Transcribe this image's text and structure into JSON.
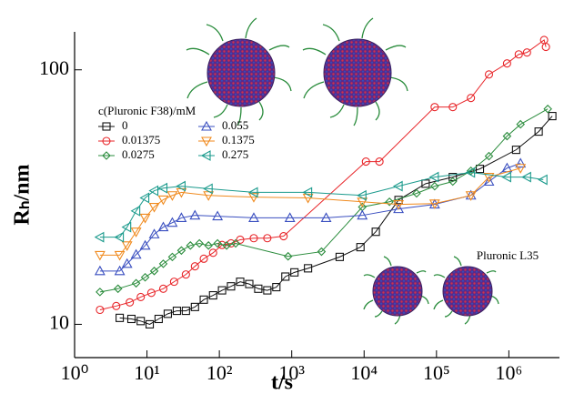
{
  "chart_data": {
    "type": "line",
    "log_x": true,
    "log_y": true,
    "x_label": "t/s",
    "y_label": "Rₕ/nm",
    "legend_title": "c(Pluronic F38)/mM",
    "annotation": "Pluronic L35",
    "xlim": [
      1,
      5000000
    ],
    "ylim": [
      7.4,
      141
    ],
    "xticks": [
      {
        "value": 1,
        "label": "10⁰"
      },
      {
        "value": 10,
        "label": "10¹"
      },
      {
        "value": 100,
        "label": "10²"
      },
      {
        "value": 1000,
        "label": "10³"
      },
      {
        "value": 10000,
        "label": "10⁴"
      },
      {
        "value": 100000,
        "label": "10⁵"
      },
      {
        "value": 1000000,
        "label": "10⁶"
      }
    ],
    "yticks": [
      10,
      100
    ],
    "series": [
      {
        "name": "0",
        "color": "#111111",
        "marker": "square",
        "x": [
          4.2,
          6.1,
          8.2,
          10.9,
          14.5,
          19.4,
          25.9,
          34.5,
          46,
          61,
          82,
          109,
          145,
          194,
          259,
          345,
          460,
          613,
          818,
          1090,
          1680,
          4600,
          8900,
          14500,
          29900,
          70800,
          168000,
          398000,
          1260000,
          2580000,
          3980000
        ],
        "values": [
          10.6,
          10.5,
          10.3,
          10.0,
          10.5,
          11.0,
          11.3,
          11.3,
          11.7,
          12.5,
          13.0,
          13.6,
          14.1,
          14.7,
          14.4,
          13.8,
          13.6,
          14.0,
          15.4,
          16.0,
          16.6,
          18.4,
          20.1,
          23.1,
          30.8,
          35.7,
          37.9,
          40.8,
          48.5,
          57.2,
          65.8
        ]
      },
      {
        "name": "0.01375",
        "color": "#e8262a",
        "marker": "circle",
        "x": [
          2.24,
          3.76,
          5.79,
          8.2,
          11.5,
          16.8,
          23.7,
          34.5,
          46,
          61,
          82,
          109,
          145,
          194,
          299,
          460,
          772,
          10600,
          16300,
          94400,
          168000,
          299000,
          531000,
          944000,
          1370000,
          1780000,
          3070000,
          3250000
        ],
        "values": [
          11.4,
          11.8,
          12.2,
          12.8,
          13.3,
          13.8,
          14.7,
          15.7,
          16.9,
          18.1,
          19.1,
          20.5,
          20.8,
          21.5,
          21.8,
          21.8,
          22.2,
          43.6,
          43.6,
          71.4,
          71.4,
          77.5,
          95.9,
          106,
          115,
          117,
          131,
          123
        ]
      },
      {
        "name": "0.0275",
        "color": "#2a8c3c",
        "marker": "diamond",
        "x": [
          2.24,
          3.98,
          7.08,
          9.44,
          12.6,
          16.8,
          22.4,
          29.9,
          39.8,
          53,
          70.8,
          94.4,
          126,
          168,
          891,
          2580,
          9440,
          22400,
          53100,
          94400,
          168000,
          299000,
          531000,
          944000,
          1450000,
          3450000
        ],
        "values": [
          13.4,
          13.8,
          14.5,
          15.3,
          16.2,
          17.3,
          18.4,
          19.5,
          20.4,
          20.8,
          20.4,
          20.8,
          20.4,
          20.8,
          18.5,
          19.3,
          28.9,
          30.3,
          32.7,
          34.9,
          36.4,
          40.1,
          45.8,
          54.9,
          61.1,
          70.2
        ]
      },
      {
        "name": "0.055",
        "color": "#3a4fc0",
        "marker": "triangle-up",
        "x": [
          2.24,
          4.2,
          5.31,
          7.08,
          9.44,
          12.6,
          16.8,
          22.4,
          29.9,
          46,
          94.4,
          299,
          944,
          2990,
          9440,
          29900,
          94400,
          299000,
          531000,
          944000,
          1450000
        ],
        "values": [
          16.2,
          16.2,
          17.3,
          18.8,
          20.4,
          22.6,
          24.1,
          25.1,
          26.2,
          26.8,
          26.6,
          26.2,
          26.2,
          26.2,
          26.8,
          28.4,
          29.6,
          32.1,
          36.4,
          41.1,
          42.9
        ]
      },
      {
        "name": "0.1375",
        "color": "#f08a1e",
        "marker": "triangle-down",
        "x": [
          2.24,
          4.2,
          5.31,
          7.08,
          9.44,
          12.6,
          16.8,
          22.4,
          29.9,
          70.8,
          299,
          1680,
          9440,
          29900,
          94400,
          299000,
          531000,
          1450000
        ],
        "values": [
          18.7,
          18.7,
          20.4,
          23.1,
          26.2,
          28.9,
          30.9,
          32.1,
          33.0,
          32.1,
          31.6,
          31.4,
          30.3,
          29.6,
          29.8,
          32.1,
          37.9,
          41.1
        ]
      },
      {
        "name": "0.275",
        "color": "#1a9a8c",
        "marker": "triangle-left",
        "x": [
          2.24,
          4.2,
          5.31,
          7.08,
          9.44,
          12.6,
          16.8,
          29.9,
          70.8,
          299,
          1680,
          9440,
          29900,
          94400,
          299000,
          944000,
          1780000,
          2990000
        ],
        "values": [
          22.0,
          22.0,
          24.1,
          27.9,
          31.4,
          33.5,
          34.3,
          34.9,
          34.1,
          33.0,
          33.0,
          32.1,
          34.9,
          37.9,
          39.5,
          37.9,
          37.9,
          37.0
        ]
      }
    ]
  }
}
